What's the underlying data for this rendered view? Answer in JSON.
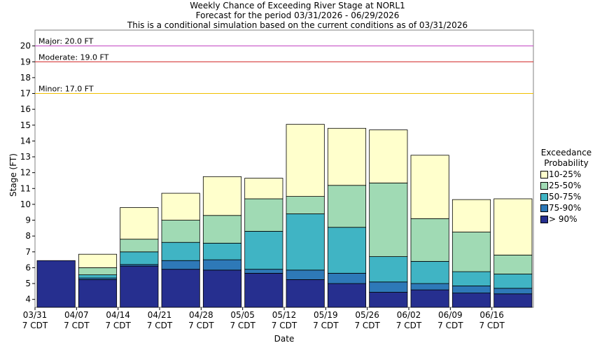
{
  "titles": [
    "Weekly Chance of Exceeding River Stage at NORL1",
    "Forecast for the period 03/31/2026 - 06/29/2026",
    "This is a conditional simulation based on the current conditions as of 03/31/2026"
  ],
  "chart_data": {
    "type": "bar",
    "title": "Weekly Chance of Exceeding River Stage at NORL1",
    "xlabel": "Date",
    "ylabel": "Stage (FT)",
    "ylim": [
      3.5,
      21.0
    ],
    "yticks": [
      4,
      5,
      6,
      7,
      8,
      9,
      10,
      11,
      12,
      13,
      14,
      15,
      16,
      17,
      18,
      19,
      20
    ],
    "categories": [
      "03/31",
      "04/07",
      "04/14",
      "04/21",
      "04/28",
      "05/05",
      "05/12",
      "05/19",
      "05/26",
      "06/02",
      "06/09",
      "06/16"
    ],
    "tick_labels": [
      {
        "date": "03/31",
        "tz": "7 CDT"
      },
      {
        "date": "04/07",
        "tz": "7 CDT"
      },
      {
        "date": "04/14",
        "tz": "7 CDT"
      },
      {
        "date": "04/21",
        "tz": "7 CDT"
      },
      {
        "date": "04/28",
        "tz": "7 CDT"
      },
      {
        "date": "05/05",
        "tz": "7 CDT"
      },
      {
        "date": "05/12",
        "tz": "7 CDT"
      },
      {
        "date": "05/19",
        "tz": "7 CDT"
      },
      {
        "date": "05/26",
        "tz": "7 CDT"
      },
      {
        "date": "06/02",
        "tz": "7 CDT"
      },
      {
        "date": "06/09",
        "tz": "7 CDT"
      },
      {
        "date": "06/16",
        "tz": "7 CDT"
      }
    ],
    "series": [
      {
        "name": "> 90%",
        "color": "#262f8f",
        "values": [
          6.45,
          5.25,
          6.1,
          5.9,
          5.85,
          5.65,
          5.25,
          5.0,
          4.45,
          4.6,
          4.4,
          4.35
        ]
      },
      {
        "name": "75-90%",
        "color": "#2e79b8",
        "values": [
          6.45,
          5.35,
          6.2,
          6.45,
          6.5,
          5.9,
          5.85,
          5.65,
          5.1,
          5.0,
          4.85,
          4.7
        ]
      },
      {
        "name": "50-75%",
        "color": "#40b4c4",
        "values": [
          6.45,
          5.55,
          7.0,
          7.6,
          7.55,
          8.3,
          9.4,
          8.55,
          6.7,
          6.4,
          5.75,
          5.6
        ]
      },
      {
        "name": "25-50%",
        "color": "#a0dab4",
        "values": [
          6.45,
          6.0,
          7.8,
          9.0,
          9.3,
          10.35,
          10.5,
          11.2,
          11.35,
          9.1,
          8.25,
          6.8
        ]
      },
      {
        "name": "10-25%",
        "color": "#ffffcc",
        "values": [
          6.45,
          6.85,
          9.8,
          10.7,
          11.75,
          11.65,
          15.05,
          14.8,
          14.7,
          13.1,
          10.3,
          10.35
        ]
      }
    ],
    "thresholds": [
      {
        "label": "Major: 20.0 FT",
        "value": 20.0,
        "color": "#c040c0"
      },
      {
        "label": "Moderate: 19.0 FT",
        "value": 19.0,
        "color": "#d02020"
      },
      {
        "label": "Minor: 17.0 FT",
        "value": 17.0,
        "color": "#f0c000"
      }
    ]
  },
  "legend": {
    "title_line1": "Exceedance",
    "title_line2": "Probability",
    "items": [
      {
        "label": "10-25%",
        "color": "#ffffcc"
      },
      {
        "label": "25-50%",
        "color": "#a0dab4"
      },
      {
        "label": "50-75%",
        "color": "#40b4c4"
      },
      {
        "label": "75-90%",
        "color": "#2e79b8"
      },
      {
        "label": "> 90%",
        "color": "#262f8f"
      }
    ]
  },
  "x_axis_title": "Date",
  "y_axis_title": "Stage (FT)"
}
